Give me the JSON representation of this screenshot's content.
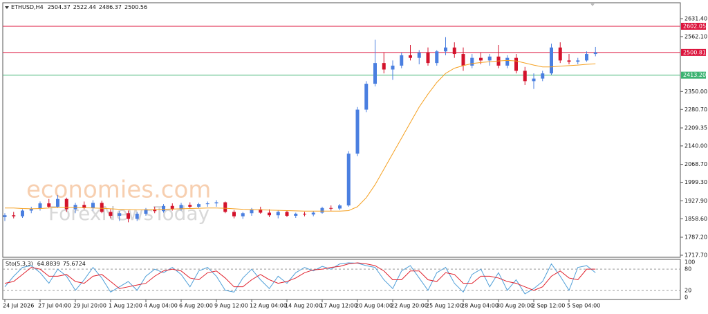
{
  "chart_data": [
    {
      "type": "candlestick",
      "title": "ETHUSD,H4",
      "header_values": [
        2504.37,
        2522.44,
        2486.37,
        2500.56
      ],
      "watermark": [
        "economies.com",
        "ForexNewsToday"
      ],
      "categories": [
        "24 Jul 2026",
        null,
        null,
        null,
        "27 Jul 04:00",
        null,
        null,
        null,
        "29 Jul 20:00",
        null,
        null,
        null,
        "1 Aug 12:00",
        null,
        null,
        null,
        "4 Aug 04:00",
        null,
        null,
        null,
        "6 Aug 20:00",
        null,
        null,
        null,
        "9 Aug 12:00",
        null,
        null,
        null,
        "12 Aug 04:00",
        null,
        null,
        null,
        "14 Aug 20:00",
        null,
        null,
        null,
        "17 Aug 12:00",
        null,
        null,
        null,
        "20 Aug 04:00",
        null,
        null,
        null,
        "22 Aug 20:00",
        null,
        null,
        null,
        "25 Aug 12:00",
        null,
        null,
        null,
        "28 Aug 04:00",
        null,
        null,
        null,
        "30 Aug 20:00",
        null,
        null,
        null,
        "2 Sep 12:00",
        null,
        null,
        null,
        "5 Sep 04:00",
        null,
        null,
        null
      ],
      "open": [
        1865,
        1872,
        1868,
        1890,
        1898,
        1918,
        1905,
        1935,
        1895,
        1912,
        1900,
        1920,
        1885,
        1870,
        1880,
        1858,
        1878,
        1895,
        1888,
        1908,
        1895,
        1912,
        1905,
        1915,
        1918,
        1922,
        1885,
        1868,
        1880,
        1895,
        1882,
        1872,
        1885,
        1870,
        1878,
        1875,
        1882,
        1900,
        1898,
        1910,
        2110,
        2280,
        2380,
        2460,
        2435,
        2450,
        2490,
        2480,
        2500,
        2460,
        2505,
        2520,
        2495,
        2450,
        2480,
        2470,
        2485,
        2450,
        2480,
        2430,
        2390,
        2400,
        2420,
        2520,
        2470,
        2465,
        2470,
        2495
      ],
      "high": [
        1880,
        1885,
        1895,
        1905,
        1925,
        1935,
        1950,
        1940,
        1920,
        1925,
        1930,
        1928,
        1895,
        1888,
        1890,
        1885,
        1900,
        1905,
        1915,
        1918,
        1920,
        1922,
        1920,
        1925,
        1930,
        1925,
        1892,
        1885,
        1900,
        1905,
        1895,
        1890,
        1890,
        1882,
        1885,
        1888,
        1905,
        1910,
        1915,
        2120,
        2290,
        2390,
        2550,
        2500,
        2470,
        2500,
        2530,
        2510,
        2520,
        2510,
        2560,
        2540,
        2520,
        2495,
        2500,
        2495,
        2530,
        2490,
        2495,
        2445,
        2420,
        2430,
        2535,
        2540,
        2495,
        2480,
        2505,
        2522
      ],
      "low": [
        1850,
        1860,
        1862,
        1880,
        1890,
        1900,
        1900,
        1885,
        1880,
        1895,
        1890,
        1880,
        1860,
        1850,
        1845,
        1850,
        1870,
        1880,
        1882,
        1890,
        1890,
        1900,
        1898,
        1905,
        1905,
        1880,
        1860,
        1858,
        1870,
        1878,
        1865,
        1860,
        1865,
        1862,
        1868,
        1868,
        1878,
        1890,
        1892,
        1905,
        2100,
        2270,
        2370,
        2420,
        2395,
        2440,
        2470,
        2455,
        2450,
        2450,
        2490,
        2480,
        2430,
        2440,
        2455,
        2450,
        2440,
        2440,
        2420,
        2375,
        2360,
        2390,
        2415,
        2460,
        2455,
        2455,
        2465,
        2486
      ],
      "close": [
        1872,
        1868,
        1890,
        1898,
        1918,
        1905,
        1935,
        1895,
        1912,
        1900,
        1920,
        1885,
        1870,
        1880,
        1858,
        1878,
        1895,
        1888,
        1908,
        1895,
        1912,
        1905,
        1915,
        1918,
        1922,
        1885,
        1868,
        1880,
        1895,
        1882,
        1872,
        1885,
        1870,
        1878,
        1875,
        1882,
        1900,
        1898,
        1910,
        2110,
        2280,
        2380,
        2460,
        2435,
        2450,
        2490,
        2480,
        2500,
        2460,
        2505,
        2520,
        2495,
        2450,
        2480,
        2470,
        2485,
        2450,
        2480,
        2430,
        2390,
        2400,
        2420,
        2520,
        2470,
        2465,
        2470,
        2495,
        2501
      ],
      "up_color": "#4a7fe0",
      "down_color": "#d3122b",
      "series": [
        {
          "color": "#f5a020",
          "values": [
            1900,
            1900,
            1898,
            1897,
            1898,
            1900,
            1902,
            1903,
            1902,
            1901,
            1900,
            1899,
            1897,
            1895,
            1894,
            1893,
            1893,
            1894,
            1895,
            1896,
            1897,
            1898,
            1899,
            1900,
            1900,
            1899,
            1897,
            1895,
            1894,
            1893,
            1892,
            1891,
            1890,
            1889,
            1888,
            1888,
            1888,
            1888,
            1888,
            1890,
            1905,
            1940,
            1990,
            2050,
            2110,
            2170,
            2230,
            2290,
            2340,
            2385,
            2420,
            2440,
            2450,
            2458,
            2462,
            2465,
            2468,
            2470,
            2468,
            2460,
            2452,
            2445,
            2445,
            2448,
            2450,
            2452,
            2455,
            2457
          ]
        }
      ],
      "levels": [
        {
          "value": 2602.05,
          "color": "#dc143c"
        },
        {
          "value": 2500.81,
          "color": "#dc143c"
        },
        {
          "value": 2413.2,
          "label": "2413.20",
          "color": "#3cb371"
        }
      ],
      "ylim": [
        1709.7,
        2692.8
      ],
      "yticks": [
        {
          "value": 2631.4,
          "label": "2631.40"
        },
        {
          "value": 2562.1,
          "label": "2562.10"
        },
        {
          "value": 2350,
          "label": "2350.00"
        },
        {
          "value": 2280.7,
          "label": "2280.70"
        },
        2209.35,
        {
          "value": 2140,
          "label": "2140.00"
        },
        {
          "value": 2068.7,
          "label": "2068.70"
        },
        {
          "value": 1999.3,
          "label": "1999.30"
        },
        {
          "value": 1927.9,
          "label": "1927.90"
        },
        {
          "value": 1858.6,
          "label": "1858.60"
        },
        {
          "value": 1787.2,
          "label": "1787.20"
        },
        {
          "value": 1717.7,
          "label": "1717.70"
        }
      ]
    },
    {
      "type": "line",
      "title": "Sto(5,3,3)",
      "header_values": [
        64.8839,
        75.6724
      ],
      "series": [
        {
          "color": "#4f9fd8",
          "values": [
            30,
            60,
            85,
            90,
            70,
            40,
            80,
            60,
            20,
            50,
            85,
            55,
            15,
            30,
            45,
            20,
            60,
            80,
            70,
            85,
            65,
            30,
            75,
            85,
            60,
            20,
            15,
            55,
            80,
            50,
            25,
            60,
            40,
            70,
            85,
            75,
            88,
            80,
            95,
            98,
            97,
            90,
            85,
            50,
            25,
            75,
            90,
            55,
            20,
            70,
            85,
            40,
            15,
            65,
            80,
            30,
            70,
            20,
            50,
            10,
            25,
            45,
            95,
            60,
            20,
            85,
            90,
            70
          ]
        },
        {
          "color": "#e0202c",
          "values": [
            40,
            45,
            65,
            85,
            80,
            60,
            60,
            65,
            45,
            40,
            60,
            65,
            45,
            25,
            30,
            35,
            40,
            60,
            75,
            80,
            75,
            55,
            50,
            70,
            75,
            55,
            30,
            30,
            50,
            65,
            50,
            40,
            45,
            55,
            70,
            78,
            80,
            85,
            88,
            95,
            98,
            95,
            90,
            75,
            50,
            50,
            75,
            75,
            50,
            45,
            70,
            65,
            40,
            40,
            60,
            60,
            55,
            45,
            40,
            30,
            20,
            30,
            60,
            75,
            55,
            50,
            80,
            80
          ]
        }
      ],
      "ylim": [
        -5.9,
        107.8
      ],
      "yticks": [
        100,
        80,
        20,
        0
      ]
    }
  ]
}
